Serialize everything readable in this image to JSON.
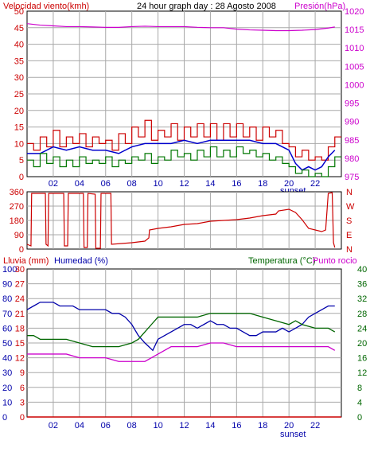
{
  "colors": {
    "wind": "#cc0000",
    "wind_avg": "#0000cc",
    "wind_low": "#007700",
    "pressure": "#cc00cc",
    "direction": "#cc0000",
    "humidity": "#0000aa",
    "temperature": "#006600",
    "dewpoint": "#cc00cc",
    "rain": "#cc0000",
    "grid": "#a8a8a8",
    "frame": "#000000"
  },
  "chart_data": [
    {
      "type": "line",
      "title": "24 hour graph day : 28 Agosto 2008",
      "ylabel_left": "Velocidad viento(kmh)",
      "ylabel_right": "Presión(hPa)",
      "x_ticks": [
        "02",
        "04",
        "06",
        "08",
        "10",
        "12",
        "14",
        "16",
        "18",
        "20",
        "22"
      ],
      "x_marker": "sunset",
      "xlim": [
        0,
        24
      ],
      "ylim_left": [
        0,
        50
      ],
      "ylim_right": [
        975,
        1020
      ],
      "yticks_left": [
        0,
        5,
        10,
        15,
        20,
        25,
        30,
        35,
        40,
        45,
        50
      ],
      "yticks_right": [
        975,
        980,
        985,
        990,
        995,
        1000,
        1005,
        1010,
        1015,
        1020
      ],
      "grid": true,
      "series": [
        {
          "axis": "left",
          "color_key": "wind",
          "x": [
            0,
            0.5,
            1,
            1.5,
            2,
            2.5,
            3,
            3.5,
            4,
            4.5,
            5,
            5.5,
            6,
            6.5,
            7,
            7.5,
            8,
            8.5,
            9,
            9.5,
            10,
            10.5,
            11,
            11.5,
            12,
            12.5,
            13,
            13.5,
            14,
            14.5,
            15,
            15.5,
            16,
            16.5,
            17,
            17.5,
            18,
            18.5,
            19,
            19.5,
            20,
            20.5,
            21,
            21.5,
            22,
            22.5,
            23,
            23.5
          ],
          "values": [
            10,
            8,
            12,
            9,
            14,
            9,
            12,
            10,
            13,
            9,
            12,
            10,
            11,
            8,
            13,
            10,
            15,
            12,
            17,
            11,
            14,
            12,
            16,
            11,
            15,
            12,
            16,
            12,
            16,
            11,
            16,
            12,
            16,
            12,
            15,
            11,
            15,
            12,
            14,
            10,
            9,
            6,
            8,
            5,
            6,
            5,
            9,
            12
          ]
        },
        {
          "axis": "left",
          "color_key": "wind_avg",
          "x": [
            0,
            1,
            2,
            3,
            4,
            5,
            6,
            7,
            8,
            9,
            10,
            11,
            12,
            13,
            14,
            15,
            16,
            17,
            18,
            19,
            20,
            20.5,
            21,
            21.5,
            22,
            22.5,
            23,
            23.5
          ],
          "values": [
            7,
            7,
            9,
            8,
            9,
            8,
            8,
            7,
            9,
            10,
            10,
            10,
            11,
            10,
            11,
            11,
            11,
            11,
            10,
            10,
            8,
            4,
            2,
            3,
            2,
            3,
            6,
            8
          ]
        },
        {
          "axis": "left",
          "color_key": "wind_low",
          "x": [
            0,
            0.5,
            1,
            1.5,
            2,
            2.5,
            3,
            3.5,
            4,
            4.5,
            5,
            5.5,
            6,
            6.5,
            7,
            7.5,
            8,
            8.5,
            9,
            9.5,
            10,
            10.5,
            11,
            11.5,
            12,
            12.5,
            13,
            13.5,
            14,
            14.5,
            15,
            15.5,
            16,
            16.5,
            17,
            17.5,
            18,
            18.5,
            19,
            19.5,
            20,
            20.5,
            21,
            21.5,
            22,
            22.5,
            23,
            23.5
          ],
          "values": [
            5,
            3,
            7,
            4,
            6,
            3,
            5,
            3,
            6,
            4,
            5,
            4,
            6,
            3,
            5,
            4,
            6,
            5,
            7,
            4,
            6,
            5,
            8,
            6,
            7,
            5,
            8,
            6,
            9,
            6,
            8,
            6,
            9,
            7,
            8,
            6,
            7,
            5,
            6,
            4,
            3,
            1,
            2,
            0,
            1,
            0,
            3,
            6
          ]
        },
        {
          "axis": "right",
          "color_key": "pressure",
          "x": [
            0,
            1,
            2,
            3,
            4,
            5,
            6,
            7,
            8,
            9,
            10,
            11,
            12,
            13,
            14,
            15,
            16,
            17,
            18,
            19,
            20,
            21,
            22,
            23,
            23.5
          ],
          "values": [
            1016.6,
            1016.2,
            1016.0,
            1015.8,
            1015.8,
            1015.7,
            1015.6,
            1015.6,
            1015.8,
            1015.9,
            1015.8,
            1015.8,
            1015.8,
            1015.6,
            1015.5,
            1015.5,
            1015.1,
            1014.9,
            1014.8,
            1014.7,
            1014.7,
            1014.8,
            1015.0,
            1015.4,
            1015.7
          ]
        }
      ]
    },
    {
      "type": "line",
      "ylim": [
        0,
        360
      ],
      "yticks": [
        0,
        90,
        180,
        270,
        360
      ],
      "ylabels_right": [
        "N",
        "W",
        "S",
        "E",
        "N"
      ],
      "xlim": [
        0,
        24
      ],
      "grid": true,
      "series": [
        {
          "color_key": "direction",
          "x": [
            0,
            0.3,
            0.35,
            1.4,
            1.45,
            1.6,
            1.65,
            2.8,
            2.85,
            3.1,
            3.15,
            4.3,
            4.35,
            4.6,
            4.65,
            5.2,
            5.25,
            5.6,
            5.65,
            6.4,
            6.45,
            8,
            9,
            9.3,
            9.35,
            10,
            11,
            12,
            13,
            14,
            15,
            16,
            17,
            18,
            19,
            19.2,
            20,
            20.5,
            21,
            21.5,
            22.5,
            22.8,
            23,
            23.3,
            23.4,
            23.5
          ],
          "values": [
            30,
            20,
            350,
            350,
            30,
            20,
            350,
            350,
            20,
            20,
            350,
            350,
            10,
            10,
            350,
            345,
            5,
            5,
            350,
            350,
            30,
            40,
            50,
            70,
            120,
            130,
            140,
            155,
            160,
            175,
            180,
            185,
            195,
            210,
            220,
            240,
            250,
            230,
            185,
            130,
            110,
            120,
            350,
            355,
            40,
            10
          ]
        }
      ]
    },
    {
      "type": "line",
      "ylabel_left": "Lluvia (mm)",
      "ylabel_humidity": "Humedad (%)",
      "ylabel_right": "Temperatura (°C)",
      "ylabel_right2": "Punto rocio",
      "x_ticks": [
        "02",
        "04",
        "06",
        "08",
        "10",
        "12",
        "14",
        "16",
        "18",
        "20",
        "22"
      ],
      "x_marker": "sunset",
      "xlim": [
        0,
        24
      ],
      "ylim_rain": [
        0,
        30
      ],
      "yticks_rain": [
        0,
        3,
        6,
        9,
        12,
        15,
        18,
        21,
        24,
        27,
        30
      ],
      "ylim_humidity": [
        0,
        100
      ],
      "yticks_humidity": [
        0,
        10,
        20,
        30,
        40,
        50,
        60,
        70,
        80,
        90,
        100
      ],
      "ylim_temp": [
        0,
        40
      ],
      "yticks_temp": [
        0,
        4,
        8,
        12,
        16,
        20,
        24,
        28,
        32,
        36,
        40
      ],
      "grid": true,
      "series": [
        {
          "axis": "temp",
          "color_key": "humidity",
          "x": [
            0,
            0.5,
            1,
            1.5,
            2,
            2.5,
            3,
            3.5,
            4,
            4.5,
            5,
            5.5,
            6,
            6.5,
            7,
            7.5,
            8,
            8.5,
            9,
            9.3,
            9.6,
            10,
            10.5,
            11,
            11.5,
            12,
            12.5,
            13,
            13.5,
            14,
            14.5,
            15,
            15.5,
            16,
            16.5,
            17,
            17.5,
            18,
            18.5,
            19,
            19.5,
            20,
            20.5,
            21,
            21.5,
            22,
            22.5,
            23,
            23.5
          ],
          "values": [
            29,
            30,
            31,
            31,
            31,
            30,
            30,
            30,
            29,
            29,
            29,
            29,
            29,
            28,
            28,
            27,
            25,
            22,
            20,
            19,
            18,
            21,
            22,
            23,
            24,
            25,
            25,
            24,
            25,
            26,
            25,
            25,
            24,
            24,
            23,
            22,
            22,
            23,
            23,
            23,
            24,
            23,
            24,
            25,
            27,
            28,
            29,
            30,
            30
          ]
        },
        {
          "axis": "temp",
          "color_key": "temperature",
          "x": [
            0,
            0.5,
            1,
            2,
            3,
            4,
            5,
            5.5,
            6,
            7,
            8,
            8.5,
            9,
            9.5,
            10,
            11,
            12,
            13,
            14,
            15,
            16,
            17,
            18,
            19,
            20,
            20.5,
            21,
            22,
            23,
            23.5
          ],
          "values": [
            22,
            22,
            21,
            21,
            21,
            20,
            19,
            19,
            19,
            19,
            20,
            21,
            23,
            25,
            27,
            27,
            27,
            27,
            28,
            28,
            28,
            28,
            27,
            26,
            25,
            26,
            25,
            24,
            24,
            23
          ]
        },
        {
          "axis": "temp",
          "color_key": "dewpoint",
          "x": [
            0,
            1,
            2,
            3,
            4,
            5,
            6,
            7,
            8,
            8.5,
            9,
            9.5,
            10,
            10.5,
            11,
            12,
            13,
            14,
            15,
            16,
            17,
            18,
            19,
            20,
            21,
            22,
            23,
            23.5
          ],
          "values": [
            17,
            17,
            17,
            17,
            16,
            16,
            16,
            15,
            15,
            15,
            15,
            16,
            17,
            18,
            19,
            19,
            19,
            20,
            20,
            19,
            19,
            19,
            19,
            19,
            19,
            19,
            19,
            18
          ]
        },
        {
          "axis": "rain",
          "color_key": "rain",
          "x": [
            0,
            24
          ],
          "values": [
            0,
            0
          ]
        }
      ]
    }
  ]
}
